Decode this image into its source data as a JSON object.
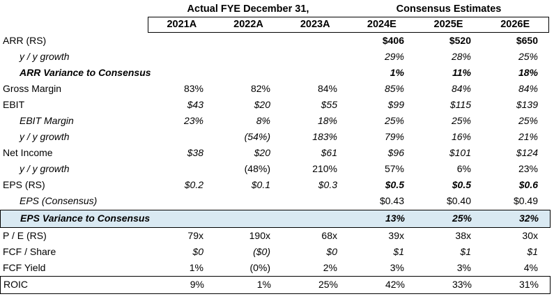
{
  "chart_data": {
    "type": "table",
    "column_groups": [
      {
        "label": "Actual FYE December 31,"
      },
      {
        "label": "Consensus Estimates"
      }
    ],
    "columns": [
      "2021A",
      "2022A",
      "2023A",
      "2024E",
      "2025E",
      "2026E"
    ],
    "rows": [
      {
        "label": "ARR (RS)",
        "indent": false,
        "label_class": "",
        "row_class": "",
        "values": [
          "",
          "",
          "",
          "$406",
          "$520",
          "$650"
        ],
        "value_classes": [
          "",
          "",
          "",
          "bold",
          "bold",
          "bold"
        ]
      },
      {
        "label": "y / y growth",
        "indent": true,
        "label_class": "italic",
        "row_class": "",
        "values": [
          "",
          "",
          "",
          "29%",
          "28%",
          "25%"
        ],
        "value_classes": [
          "",
          "",
          "",
          "italic",
          "italic",
          "italic"
        ]
      },
      {
        "label": "ARR Variance to Consensus",
        "indent": true,
        "label_class": "bold-italic",
        "row_class": "",
        "values": [
          "",
          "",
          "",
          "1%",
          "11%",
          "18%"
        ],
        "value_classes": [
          "",
          "",
          "",
          "bold-italic",
          "bold-italic",
          "bold-italic"
        ]
      },
      {
        "label": "Gross Margin",
        "indent": false,
        "label_class": "",
        "row_class": "",
        "values": [
          "83%",
          "82%",
          "84%",
          "85%",
          "84%",
          "84%"
        ],
        "value_classes": [
          "",
          "",
          "",
          "italic",
          "italic",
          "italic"
        ]
      },
      {
        "label": "EBIT",
        "indent": false,
        "label_class": "",
        "row_class": "",
        "values": [
          "$43",
          "$20",
          "$55",
          "$99",
          "$115",
          "$139"
        ],
        "value_classes": [
          "italic",
          "italic",
          "italic",
          "italic",
          "italic",
          "italic"
        ]
      },
      {
        "label": "EBIT Margin",
        "indent": true,
        "label_class": "italic",
        "row_class": "",
        "values": [
          "23%",
          "8%",
          "18%",
          "25%",
          "25%",
          "25%"
        ],
        "value_classes": [
          "italic",
          "italic",
          "italic",
          "italic",
          "italic",
          "italic"
        ]
      },
      {
        "label": "y / y growth",
        "indent": true,
        "label_class": "italic",
        "row_class": "",
        "values": [
          "",
          "(54%)",
          "183%",
          "79%",
          "16%",
          "21%"
        ],
        "value_classes": [
          "italic",
          "italic",
          "italic",
          "italic",
          "italic",
          "italic"
        ]
      },
      {
        "label": "Net Income",
        "indent": false,
        "label_class": "",
        "row_class": "",
        "values": [
          "$38",
          "$20",
          "$61",
          "$96",
          "$101",
          "$124"
        ],
        "value_classes": [
          "italic",
          "italic",
          "italic",
          "italic",
          "italic",
          "italic"
        ]
      },
      {
        "label": "y / y growth",
        "indent": true,
        "label_class": "italic",
        "row_class": "",
        "values": [
          "",
          "(48%)",
          "210%",
          "57%",
          "6%",
          "23%"
        ],
        "value_classes": [
          "",
          "",
          "",
          "",
          "",
          ""
        ]
      },
      {
        "label": "EPS (RS)",
        "indent": false,
        "label_class": "",
        "row_class": "",
        "values": [
          "$0.2",
          "$0.1",
          "$0.3",
          "$0.5",
          "$0.5",
          "$0.6"
        ],
        "value_classes": [
          "italic",
          "italic",
          "italic",
          "bold-italic",
          "bold-italic",
          "bold-italic"
        ]
      },
      {
        "label": "EPS (Consensus)",
        "indent": true,
        "label_class": "italic",
        "row_class": "",
        "values": [
          "",
          "",
          "",
          "$0.43",
          "$0.40",
          "$0.49"
        ],
        "value_classes": [
          "",
          "",
          "",
          "",
          "",
          ""
        ]
      },
      {
        "label": "EPS Variance to Consensus",
        "indent": true,
        "label_class": "bold-italic",
        "row_class": "highlight",
        "values": [
          "",
          "",
          "",
          "13%",
          "25%",
          "32%"
        ],
        "value_classes": [
          "",
          "",
          "",
          "bold-italic",
          "bold-italic",
          "bold-italic"
        ]
      },
      {
        "label": "P / E (RS)",
        "indent": false,
        "label_class": "",
        "row_class": "",
        "values": [
          "79x",
          "190x",
          "68x",
          "39x",
          "38x",
          "30x"
        ],
        "value_classes": [
          "",
          "",
          "",
          "",
          "",
          ""
        ]
      },
      {
        "label": "FCF / Share",
        "indent": false,
        "label_class": "",
        "row_class": "",
        "values": [
          "$0",
          "($0)",
          "$0",
          "$1",
          "$1",
          "$1"
        ],
        "value_classes": [
          "italic",
          "italic",
          "italic",
          "italic",
          "italic",
          "italic"
        ]
      },
      {
        "label": "FCF Yield",
        "indent": false,
        "label_class": "",
        "row_class": "",
        "values": [
          "1%",
          "(0%)",
          "2%",
          "3%",
          "3%",
          "4%"
        ],
        "value_classes": [
          "",
          "",
          "",
          "",
          "",
          ""
        ]
      },
      {
        "label": "ROIC",
        "indent": false,
        "label_class": "",
        "row_class": "boxed",
        "values": [
          "9%",
          "1%",
          "25%",
          "42%",
          "33%",
          "31%"
        ],
        "value_classes": [
          "",
          "",
          "",
          "",
          "",
          ""
        ]
      }
    ]
  },
  "colors": {
    "highlight_fill": "#D9E9F2",
    "border": "#000000",
    "text": "#000000"
  }
}
